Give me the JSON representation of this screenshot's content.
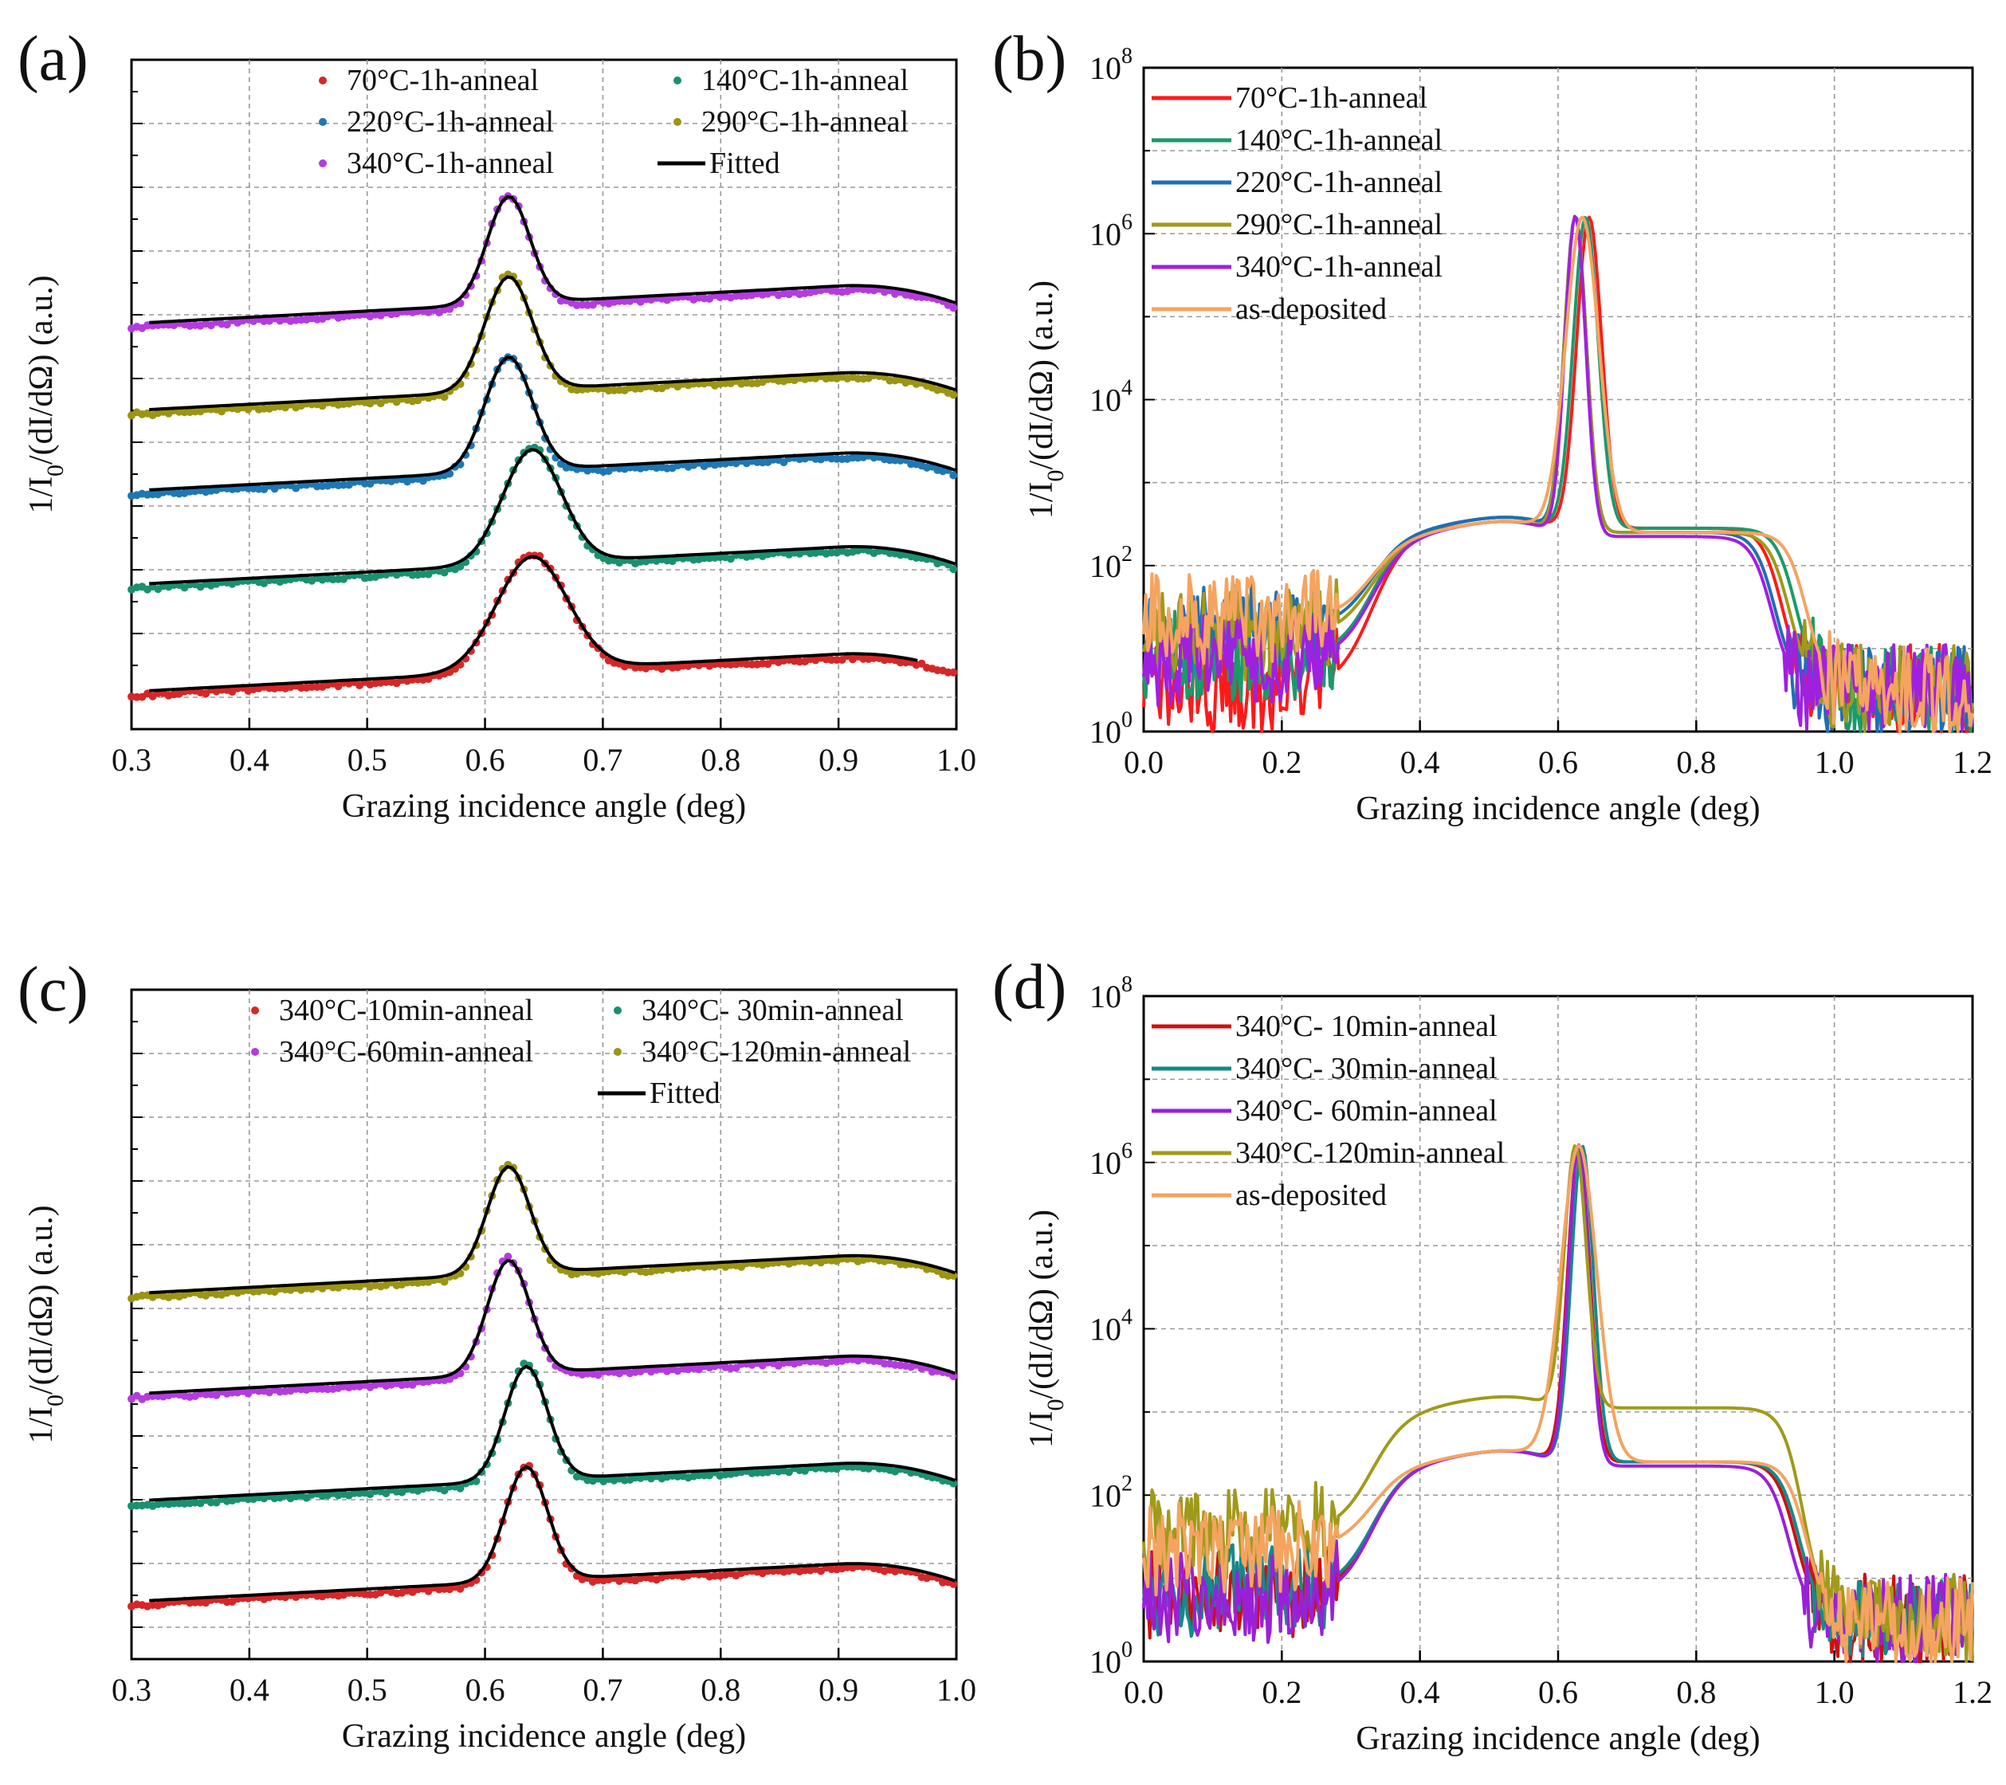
{
  "figure": {
    "description_visible_only": true
  },
  "chart_data": [
    {
      "panel": "(a)",
      "type": "scatter",
      "xlabel": "Grazing incidence angle (deg)",
      "ylabel": "1/I0/(dI/dΩ) (a.u.)",
      "ylabel_parts": {
        "pre": "1/I",
        "sub": "0",
        "post": "/(dI/dΩ) (a.u.)"
      },
      "xlim": [
        0.3,
        1.0
      ],
      "xticks": [
        "0.3",
        "0.4",
        "0.5",
        "0.6",
        "0.7",
        "0.8",
        "0.9",
        "1.0"
      ],
      "ylim": [
        0,
        100
      ],
      "y_tick_labels": "none (arbitrary units, curves offset vertically)",
      "grid": true,
      "series": [
        {
          "name": "70°C-1h-anneal",
          "color": "#d62728",
          "offset": 5,
          "peak": 0.64,
          "width": 0.03,
          "height": 17
        },
        {
          "name": "140°C-1h-anneal",
          "color": "#1a9070",
          "offset": 21,
          "peak": 0.64,
          "width": 0.025,
          "height": 17
        },
        {
          "name": "220°C-1h-anneal",
          "color": "#1f77b4",
          "offset": 35,
          "peak": 0.62,
          "width": 0.02,
          "height": 17
        },
        {
          "name": "290°C-1h-anneal",
          "color": "#9b9414",
          "offset": 47,
          "peak": 0.62,
          "width": 0.02,
          "height": 17
        },
        {
          "name": "340°C-1h-anneal",
          "color": "#b43be0",
          "offset": 60,
          "peak": 0.62,
          "width": 0.018,
          "height": 16
        }
      ],
      "fitted": {
        "name": "Fitted",
        "color": "#000000"
      },
      "legend_position": "top"
    },
    {
      "panel": "(b)",
      "type": "line",
      "xlabel": "Grazing incidence angle (deg)",
      "ylabel": "1/I0/(dI/dΩ) (a.u.)",
      "ylabel_parts": {
        "pre": "1/I",
        "sub": "0",
        "post": "/(dI/dΩ) (a.u.)"
      },
      "yscale": "log",
      "xlim": [
        0.0,
        1.2
      ],
      "xticks": [
        "0.0",
        "0.2",
        "0.4",
        "0.6",
        "0.8",
        "1.0",
        "1.2"
      ],
      "ylim_exp": [
        0,
        8
      ],
      "yticks": [
        {
          "base": "10",
          "exp": "0"
        },
        {
          "base": "10",
          "exp": "2"
        },
        {
          "base": "10",
          "exp": "4"
        },
        {
          "base": "10",
          "exp": "6"
        },
        {
          "base": "10",
          "exp": "8"
        }
      ],
      "grid": true,
      "series": [
        {
          "name": "70°C-1h-anneal",
          "color": "#ff1a1a",
          "peak": 0.645,
          "width": 0.018,
          "bg": 0.5,
          "plateau": 2.35,
          "right": 2.25,
          "edge": 0.965
        },
        {
          "name": "140°C-1h-anneal",
          "color": "#1a9a6c",
          "peak": 0.64,
          "width": 0.018,
          "bg": 0.9,
          "plateau": 2.35,
          "right": 2.25,
          "edge": 0.985
        },
        {
          "name": "220°C-1h-anneal",
          "color": "#1f6fb4",
          "peak": 0.625,
          "width": 0.016,
          "bg": 1.25,
          "plateau": 2.35,
          "right": 2.2,
          "edge": 0.955
        },
        {
          "name": "290°C-1h-anneal",
          "color": "#a09a1a",
          "peak": 0.625,
          "width": 0.016,
          "bg": 1.15,
          "plateau": 2.3,
          "right": 2.2,
          "edge": 0.975
        },
        {
          "name": "340°C-1h-anneal",
          "color": "#a020e0",
          "peak": 0.625,
          "width": 0.015,
          "bg": 0.85,
          "plateau": 2.3,
          "right": 2.15,
          "edge": 0.95
        },
        {
          "name": "as-deposited",
          "color": "#f4a460",
          "peak": 0.635,
          "width": 0.024,
          "bg": 1.35,
          "plateau": 2.3,
          "right": 2.2,
          "edge": 1.0
        }
      ],
      "legend_position": "top-left"
    },
    {
      "panel": "(c)",
      "type": "scatter",
      "xlabel": "Grazing incidence angle (deg)",
      "ylabel": "1/I0/(dI/dΩ) (a.u.)",
      "ylabel_parts": {
        "pre": "1/I",
        "sub": "0",
        "post": "/(dI/dΩ) (a.u.)"
      },
      "xlim": [
        0.3,
        1.0
      ],
      "xticks": [
        "0.3",
        "0.4",
        "0.5",
        "0.6",
        "0.7",
        "0.8",
        "0.9",
        "1.0"
      ],
      "ylim": [
        0,
        100
      ],
      "y_tick_labels": "none (arbitrary units, curves offset vertically)",
      "grid": true,
      "series": [
        {
          "name": "340°C-10min-anneal",
          "color": "#d62728",
          "offset": 8,
          "peak": 0.635,
          "width": 0.018,
          "height": 17
        },
        {
          "name": "340°C-  30min-anneal",
          "color": "#1a9070",
          "offset": 23,
          "peak": 0.635,
          "width": 0.018,
          "height": 17
        },
        {
          "name": "340°C-60min-anneal",
          "color": "#b43be0",
          "offset": 39,
          "peak": 0.62,
          "width": 0.018,
          "height": 17
        },
        {
          "name": "340°C-120min-anneal",
          "color": "#9b9414",
          "offset": 54,
          "peak": 0.62,
          "width": 0.018,
          "height": 16
        }
      ],
      "fitted": {
        "name": "Fitted",
        "color": "#000000"
      },
      "legend_position": "top"
    },
    {
      "panel": "(d)",
      "type": "line",
      "xlabel": "Grazing incidence angle (deg)",
      "ylabel": "1/I0/(dI/dΩ) (a.u.)",
      "ylabel_parts": {
        "pre": "1/I",
        "sub": "0",
        "post": "/(dI/dΩ) (a.u.)"
      },
      "yscale": "log",
      "xlim": [
        0.0,
        1.2
      ],
      "xticks": [
        "0.0",
        "0.2",
        "0.4",
        "0.6",
        "0.8",
        "1.0",
        "1.2"
      ],
      "ylim_exp": [
        0,
        8
      ],
      "yticks": [
        {
          "base": "10",
          "exp": "0"
        },
        {
          "base": "10",
          "exp": "2"
        },
        {
          "base": "10",
          "exp": "4"
        },
        {
          "base": "10",
          "exp": "6"
        },
        {
          "base": "10",
          "exp": "8"
        }
      ],
      "grid": true,
      "series": [
        {
          "name": "340°C-  10min-anneal",
          "color": "#cc1111",
          "peak": 0.63,
          "width": 0.016,
          "bg": 0.8,
          "plateau": 2.3,
          "right": 2.2,
          "edge": 0.985
        },
        {
          "name": "340°C-  30min-anneal",
          "color": "#148a8a",
          "peak": 0.635,
          "width": 0.016,
          "bg": 0.85,
          "plateau": 2.3,
          "right": 2.2,
          "edge": 0.99
        },
        {
          "name": "340°C-  60min-anneal",
          "color": "#9a20d8",
          "peak": 0.63,
          "width": 0.015,
          "bg": 0.75,
          "plateau": 2.3,
          "right": 2.15,
          "edge": 0.975
        },
        {
          "name": "340°C-120min-anneal",
          "color": "#a09a1a",
          "peak": 0.625,
          "width": 0.016,
          "bg": 1.55,
          "plateau": 2.95,
          "right": 2.85,
          "edge": 0.995
        },
        {
          "name": "as-deposited",
          "color": "#f4a460",
          "peak": 0.63,
          "width": 0.026,
          "bg": 1.35,
          "plateau": 2.3,
          "right": 2.2,
          "edge": 1.0
        }
      ],
      "legend_position": "top-left"
    }
  ]
}
